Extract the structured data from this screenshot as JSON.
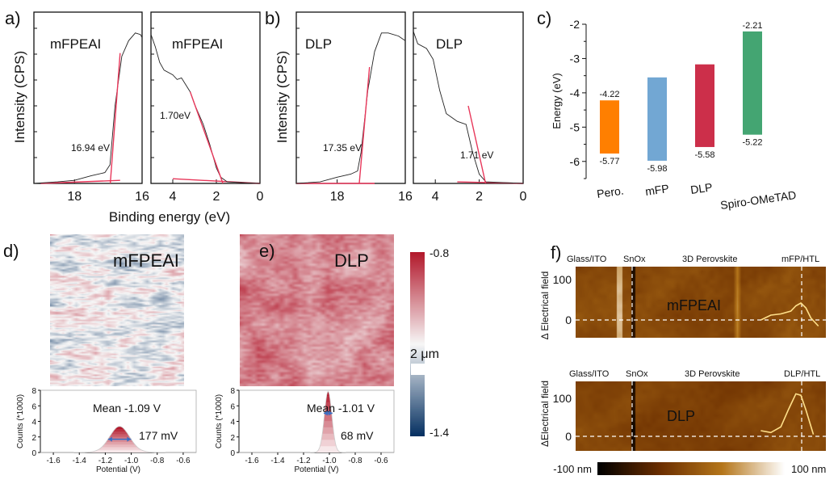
{
  "chart_data": [
    {
      "panel": "a)",
      "type": "line",
      "ylabel": "Intensity (CPS)",
      "xlabel": "Binding energy (eV)",
      "subplots": [
        {
          "label": "mFPEAI",
          "xlim": [
            19.2,
            16
          ],
          "xticks": [
            18,
            16
          ],
          "annotation": "16.94 eV",
          "curve": [
            [
              19.2,
              0
            ],
            [
              18.5,
              0.01
            ],
            [
              18,
              0.02
            ],
            [
              17.5,
              0.05
            ],
            [
              17.1,
              0.07
            ],
            [
              16.95,
              0.12
            ],
            [
              16.8,
              0.5
            ],
            [
              16.6,
              0.82
            ],
            [
              16.4,
              0.92
            ],
            [
              16.2,
              0.97
            ],
            [
              16.05,
              0.96
            ],
            [
              16,
              0.94
            ]
          ],
          "fit": [
            [
              16.94,
              0
            ],
            [
              16.65,
              0.84
            ]
          ],
          "baseline": [
            [
              19.0,
              0
            ],
            [
              16.65,
              0.02
            ]
          ]
        },
        {
          "label": "mFPEAI",
          "xlim": [
            5,
            0
          ],
          "xticks": [
            4,
            2,
            0
          ],
          "annotation": "1.70eV",
          "curve": [
            [
              5,
              0.96
            ],
            [
              4.8,
              0.88
            ],
            [
              4.6,
              0.78
            ],
            [
              4.4,
              0.73
            ],
            [
              4,
              0.7
            ],
            [
              3.8,
              0.67
            ],
            [
              3.6,
              0.68
            ],
            [
              3.2,
              0.59
            ],
            [
              3,
              0.51
            ],
            [
              2.6,
              0.38
            ],
            [
              2.3,
              0.25
            ],
            [
              2,
              0.1
            ],
            [
              1.8,
              0.04
            ],
            [
              1.5,
              0.01
            ],
            [
              0,
              0
            ]
          ],
          "fit": [
            [
              3.2,
              0.59
            ],
            [
              1.7,
              0
            ]
          ],
          "baseline": [
            [
              4,
              0.03
            ],
            [
              0,
              0
            ]
          ]
        }
      ]
    },
    {
      "panel": "b)",
      "type": "line",
      "ylabel": "Intensity (CPS)",
      "subplots": [
        {
          "label": "DLP",
          "xlim": [
            19.2,
            16
          ],
          "xticks": [
            18,
            16
          ],
          "annotation": "17.35 eV",
          "curve": [
            [
              19.2,
              0
            ],
            [
              18.5,
              0.01
            ],
            [
              18,
              0.04
            ],
            [
              17.6,
              0.06
            ],
            [
              17.4,
              0.08
            ],
            [
              17.3,
              0.2
            ],
            [
              17.1,
              0.6
            ],
            [
              16.9,
              0.85
            ],
            [
              16.7,
              0.97
            ],
            [
              16.5,
              0.97
            ],
            [
              16.2,
              0.95
            ],
            [
              16,
              0.92
            ]
          ],
          "fit": [
            [
              17.35,
              0
            ],
            [
              17.05,
              0.75
            ]
          ],
          "baseline": [
            [
              19.2,
              0
            ],
            [
              16.9,
              0
            ]
          ]
        },
        {
          "label": "DLP",
          "xlim": [
            5,
            0
          ],
          "xticks": [
            4,
            2,
            0
          ],
          "annotation": "1.71 eV",
          "curve": [
            [
              5,
              0.98
            ],
            [
              4.8,
              0.9
            ],
            [
              4.4,
              0.87
            ],
            [
              4.1,
              0.8
            ],
            [
              3.8,
              0.6
            ],
            [
              3.5,
              0.45
            ],
            [
              3.2,
              0.42
            ],
            [
              3,
              0.4
            ],
            [
              2.6,
              0.38
            ],
            [
              2.3,
              0.2
            ],
            [
              2,
              0.06
            ],
            [
              1.7,
              0.01
            ],
            [
              0,
              0
            ]
          ],
          "fit": [
            [
              2.5,
              0.5
            ],
            [
              1.71,
              0
            ]
          ],
          "baseline": [
            [
              3,
              0.01
            ],
            [
              0,
              0
            ]
          ]
        }
      ]
    },
    {
      "panel": "c)",
      "type": "bar",
      "ylabel": "Energy (eV)",
      "ylim": [
        -6.5,
        -2
      ],
      "yticks": [
        -2,
        -3,
        -4,
        -5,
        -6
      ],
      "categories": [
        "Pero.",
        "mFP",
        "DLP",
        "Spiro-OMeTAD"
      ],
      "bars": [
        {
          "top": -4.22,
          "bottom": -5.77,
          "top_label": "-4.22",
          "bottom_label": "-5.77",
          "color": "#ff7f00"
        },
        {
          "top": -3.55,
          "bottom": -5.98,
          "top_label": "",
          "bottom_label": "-5.98",
          "color": "#72a7d3"
        },
        {
          "top": -3.17,
          "bottom": -5.58,
          "top_label": "",
          "bottom_label": "-5.58",
          "color": "#cc2f4a"
        },
        {
          "top": -2.21,
          "bottom": -5.22,
          "top_label": "-2.21",
          "bottom_label": "-5.22",
          "color": "#44a572"
        }
      ]
    },
    {
      "panel": "d)",
      "type": "heatmap",
      "label": "mFPEAI",
      "histogram": {
        "ylabel": "Counts (*1000)",
        "xlabel": "Potential (V)",
        "xlim": [
          -1.7,
          -0.5
        ],
        "ylim": [
          0,
          8
        ],
        "xticks": [
          -1.6,
          -1.4,
          -1.2,
          -1.0,
          -0.8,
          -0.6
        ],
        "yticks": [
          0,
          2,
          4,
          6,
          8
        ],
        "mean_label": "Mean -1.09 V",
        "width_label": "177 mV",
        "mean": -1.09,
        "fwhm": 0.177,
        "peak": 3.2
      }
    },
    {
      "panel": "e)",
      "type": "heatmap",
      "label": "DLP",
      "scale_bar": "2 μm",
      "histogram": {
        "ylabel": "Counts (*1000)",
        "xlabel": "Potential (V)",
        "xlim": [
          -1.7,
          -0.5
        ],
        "ylim": [
          0,
          8
        ],
        "xticks": [
          -1.6,
          -1.4,
          -1.2,
          -1.0,
          -0.8,
          -0.6
        ],
        "yticks": [
          0,
          2,
          4,
          6,
          8
        ],
        "mean_label": "Mean -1.01 V",
        "width_label": "68 mV",
        "mean": -1.01,
        "fwhm": 0.068,
        "peak": 7.7
      }
    },
    {
      "panel": "colorbar-de",
      "type": "heatmap",
      "max_label": "-0.8",
      "min_label": "-1.4",
      "colors": [
        "#b2182b",
        "#f7f7f7",
        "#053061"
      ]
    },
    {
      "panel": "f)",
      "type": "heatmap",
      "ylabel_top": "Δ Electrical field",
      "ylabel_bottom": "ΔElectrical field",
      "yticks": [
        0,
        100
      ],
      "maps": [
        {
          "label": "mFPEAI",
          "layers": [
            "Glass/ITO",
            "SnOx",
            "3D Perovskite",
            "mFP/HTL"
          ],
          "profile": [
            [
              0.74,
              0.0
            ],
            [
              0.78,
              12
            ],
            [
              0.82,
              15
            ],
            [
              0.86,
              22
            ],
            [
              0.88,
              35
            ],
            [
              0.9,
              42
            ],
            [
              0.92,
              30
            ],
            [
              0.94,
              5
            ],
            [
              0.97,
              -15
            ]
          ]
        },
        {
          "label": "DLP",
          "layers": [
            "Glass/ITO",
            "SnOx",
            "3D Perovskite",
            "DLP/HTL"
          ],
          "profile": [
            [
              0.74,
              15
            ],
            [
              0.78,
              10
            ],
            [
              0.82,
              25
            ],
            [
              0.85,
              70
            ],
            [
              0.88,
              112
            ],
            [
              0.9,
              108
            ],
            [
              0.92,
              70
            ],
            [
              0.95,
              5
            ]
          ]
        }
      ],
      "colorbar": {
        "min_label": "-100 nm",
        "max_label": "100 nm",
        "colors": [
          "#000000",
          "#6b2e00",
          "#b5761a",
          "#ffffff"
        ]
      }
    }
  ]
}
